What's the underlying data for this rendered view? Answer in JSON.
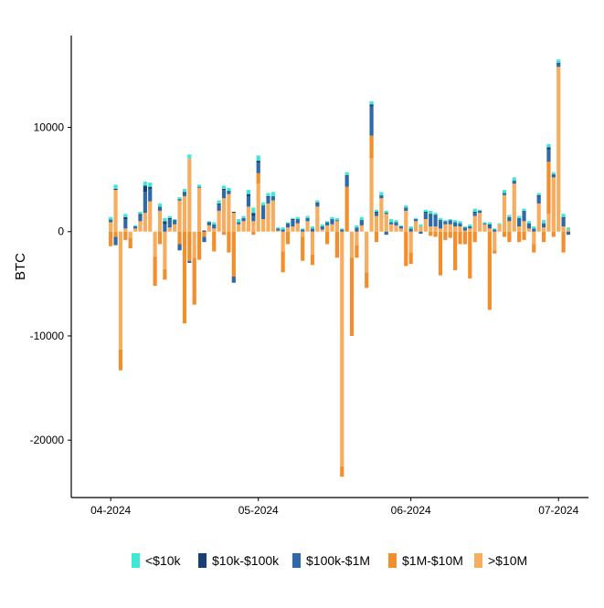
{
  "chart_data": {
    "type": "bar",
    "stacked": true,
    "title": "",
    "xlabel": "",
    "ylabel": "BTC",
    "ylim": [
      -25500,
      18800
    ],
    "xlim": [
      "2024-03-29",
      "2024-07-03"
    ],
    "grid": false,
    "legend_position": "bottom",
    "y_ticks": [
      {
        "value": 10000,
        "label": "10000"
      },
      {
        "value": 0,
        "label": "0"
      },
      {
        "value": -10000,
        "label": "-10000"
      },
      {
        "value": -20000,
        "label": "-20000"
      }
    ],
    "x_ticks": [
      {
        "date": "2024-04-01",
        "label": "04-2024"
      },
      {
        "date": "2024-05-01",
        "label": "05-2024"
      },
      {
        "date": "2024-06-01",
        "label": "06-2024"
      },
      {
        "date": "2024-07-01",
        "label": "07-2024"
      }
    ],
    "series": [
      {
        "name": "<$10k",
        "color": "#3fe8d2"
      },
      {
        "name": "$10k-$100k",
        "color": "#173f73"
      },
      {
        "name": "$100k-$1M",
        "color": "#2f6aa8"
      },
      {
        "name": "$1M-$10M",
        "color": "#f28e2b"
      },
      {
        "name": ">$10M",
        "color": "#f6ad5f"
      }
    ],
    "data": [
      {
        "date": "2024-04-01",
        "values": [
          250,
          50,
          200,
          -1400,
          900
        ]
      },
      {
        "date": "2024-04-02",
        "values": [
          400,
          100,
          -800,
          -500,
          4000
        ]
      },
      {
        "date": "2024-04-03",
        "values": [
          0,
          0,
          0,
          -2000,
          -11300
        ]
      },
      {
        "date": "2024-04-04",
        "values": [
          300,
          200,
          900,
          -800,
          300
        ]
      },
      {
        "date": "2024-04-05",
        "values": [
          0,
          0,
          0,
          -1000,
          -600
        ]
      },
      {
        "date": "2024-04-06",
        "values": [
          100,
          0,
          200,
          0,
          300
        ]
      },
      {
        "date": "2024-04-07",
        "values": [
          200,
          100,
          600,
          0,
          1000
        ]
      },
      {
        "date": "2024-04-08",
        "values": [
          400,
          600,
          2000,
          0,
          1800
        ]
      },
      {
        "date": "2024-04-09",
        "values": [
          400,
          200,
          1200,
          0,
          2900
        ]
      },
      {
        "date": "2024-04-10",
        "values": [
          0,
          0,
          0,
          -2800,
          -2400
        ]
      },
      {
        "date": "2024-04-11",
        "values": [
          300,
          0,
          400,
          -1200,
          2000
        ]
      },
      {
        "date": "2024-04-12",
        "values": [
          300,
          300,
          700,
          -1000,
          -3600
        ]
      },
      {
        "date": "2024-04-13",
        "values": [
          200,
          100,
          800,
          0,
          400
        ]
      },
      {
        "date": "2024-04-14",
        "values": [
          100,
          100,
          300,
          0,
          700
        ]
      },
      {
        "date": "2024-04-15",
        "values": [
          200,
          100,
          -600,
          -1200,
          3000
        ]
      },
      {
        "date": "2024-04-16",
        "values": [
          300,
          100,
          300,
          -8800,
          3400
        ]
      },
      {
        "date": "2024-04-17",
        "values": [
          400,
          0,
          -200,
          -2800,
          7000
        ]
      },
      {
        "date": "2024-04-18",
        "values": [
          0,
          0,
          0,
          -4500,
          -2500
        ]
      },
      {
        "date": "2024-04-19",
        "values": [
          200,
          0,
          100,
          -2700,
          4200
        ]
      },
      {
        "date": "2024-04-20",
        "values": [
          0,
          100,
          -500,
          -500,
          0
        ]
      },
      {
        "date": "2024-04-21",
        "values": [
          100,
          100,
          200,
          0,
          600
        ]
      },
      {
        "date": "2024-04-22",
        "values": [
          200,
          0,
          400,
          -1900,
          300
        ]
      },
      {
        "date": "2024-04-23",
        "values": [
          300,
          100,
          600,
          0,
          2000
        ]
      },
      {
        "date": "2024-04-24",
        "values": [
          300,
          100,
          800,
          -300,
          3200
        ]
      },
      {
        "date": "2024-04-25",
        "values": [
          300,
          100,
          200,
          -2000,
          3600
        ]
      },
      {
        "date": "2024-04-26",
        "values": [
          0,
          100,
          -600,
          -4300,
          1800
        ]
      },
      {
        "date": "2024-04-27",
        "values": [
          300,
          0,
          200,
          0,
          700
        ]
      },
      {
        "date": "2024-04-28",
        "values": [
          200,
          0,
          300,
          0,
          1000
        ]
      },
      {
        "date": "2024-04-29",
        "values": [
          400,
          200,
          1000,
          0,
          2400
        ]
      },
      {
        "date": "2024-04-30",
        "values": [
          500,
          300,
          500,
          -300,
          1000
        ]
      },
      {
        "date": "2024-05-01",
        "values": [
          500,
          200,
          1000,
          1000,
          4600
        ]
      },
      {
        "date": "2024-05-02",
        "values": [
          300,
          100,
          1200,
          0,
          1200
        ]
      },
      {
        "date": "2024-05-03",
        "values": [
          300,
          100,
          600,
          0,
          2700
        ]
      },
      {
        "date": "2024-05-04",
        "values": [
          400,
          0,
          400,
          0,
          3000
        ]
      },
      {
        "date": "2024-05-05",
        "values": [
          100,
          0,
          200,
          0,
          100
        ]
      },
      {
        "date": "2024-05-06",
        "values": [
          200,
          0,
          200,
          -2000,
          -1900
        ]
      },
      {
        "date": "2024-05-07",
        "values": [
          100,
          0,
          400,
          -1200,
          400
        ]
      },
      {
        "date": "2024-05-08",
        "values": [
          100,
          100,
          600,
          0,
          500
        ]
      },
      {
        "date": "2024-05-09",
        "values": [
          200,
          0,
          400,
          0,
          800
        ]
      },
      {
        "date": "2024-05-10",
        "values": [
          100,
          0,
          200,
          -2300,
          -500
        ]
      },
      {
        "date": "2024-05-11",
        "values": [
          200,
          0,
          300,
          0,
          1000
        ]
      },
      {
        "date": "2024-05-12",
        "values": [
          200,
          0,
          300,
          -1000,
          -2200
        ]
      },
      {
        "date": "2024-05-13",
        "values": [
          200,
          100,
          300,
          0,
          2400
        ]
      },
      {
        "date": "2024-05-14",
        "values": [
          200,
          0,
          300,
          0,
          200
        ]
      },
      {
        "date": "2024-05-15",
        "values": [
          100,
          0,
          300,
          -1200,
          600
        ]
      },
      {
        "date": "2024-05-16",
        "values": [
          200,
          0,
          500,
          0,
          700
        ]
      },
      {
        "date": "2024-05-17",
        "values": [
          200,
          0,
          100,
          -2500,
          1000
        ]
      },
      {
        "date": "2024-05-18",
        "values": [
          100,
          0,
          200,
          -1000,
          -22500
        ]
      },
      {
        "date": "2024-05-19",
        "values": [
          300,
          100,
          1000,
          4300,
          0
        ]
      },
      {
        "date": "2024-05-20",
        "values": [
          0,
          0,
          0,
          -7500,
          -2500
        ]
      },
      {
        "date": "2024-05-21",
        "values": [
          200,
          0,
          400,
          -1200,
          -1300
        ]
      },
      {
        "date": "2024-05-22",
        "values": [
          300,
          100,
          400,
          0,
          600
        ]
      },
      {
        "date": "2024-05-23",
        "values": [
          0,
          0,
          0,
          -1500,
          -3900
        ]
      },
      {
        "date": "2024-05-24",
        "values": [
          300,
          200,
          2800,
          2200,
          7000
        ]
      },
      {
        "date": "2024-05-25",
        "values": [
          200,
          100,
          300,
          -1000,
          1500
        ]
      },
      {
        "date": "2024-05-26",
        "values": [
          300,
          0,
          300,
          0,
          3200
        ]
      },
      {
        "date": "2024-05-27",
        "values": [
          200,
          100,
          -300,
          0,
          1700
        ]
      },
      {
        "date": "2024-05-28",
        "values": [
          300,
          0,
          200,
          0,
          700
        ]
      },
      {
        "date": "2024-05-29",
        "values": [
          200,
          0,
          300,
          0,
          600
        ]
      },
      {
        "date": "2024-05-30",
        "values": [
          100,
          0,
          200,
          0,
          300
        ]
      },
      {
        "date": "2024-05-31",
        "values": [
          200,
          0,
          300,
          -3300,
          2000
        ]
      },
      {
        "date": "2024-06-01",
        "values": [
          200,
          0,
          300,
          -1100,
          -2000
        ]
      },
      {
        "date": "2024-06-02",
        "values": [
          100,
          0,
          200,
          0,
          1000
        ]
      },
      {
        "date": "2024-06-03",
        "values": [
          200,
          0,
          -200,
          0,
          500
        ]
      },
      {
        "date": "2024-06-04",
        "values": [
          200,
          100,
          600,
          0,
          1200
        ]
      },
      {
        "date": "2024-06-05",
        "values": [
          300,
          100,
          1100,
          -400,
          500
        ]
      },
      {
        "date": "2024-06-06",
        "values": [
          200,
          100,
          1000,
          -500,
          500
        ]
      },
      {
        "date": "2024-06-07",
        "values": [
          200,
          100,
          700,
          -4200,
          300
        ]
      },
      {
        "date": "2024-06-08",
        "values": [
          100,
          0,
          300,
          -800,
          700
        ]
      },
      {
        "date": "2024-06-09",
        "values": [
          100,
          0,
          400,
          -600,
          700
        ]
      },
      {
        "date": "2024-06-10",
        "values": [
          200,
          0,
          400,
          -3700,
          500
        ]
      },
      {
        "date": "2024-06-11",
        "values": [
          200,
          0,
          300,
          -1200,
          500
        ]
      },
      {
        "date": "2024-06-12",
        "values": [
          100,
          0,
          300,
          -1200,
          100
        ]
      },
      {
        "date": "2024-06-13",
        "values": [
          200,
          0,
          200,
          -4500,
          300
        ]
      },
      {
        "date": "2024-06-14",
        "values": [
          300,
          100,
          300,
          -1000,
          1500
        ]
      },
      {
        "date": "2024-06-15",
        "values": [
          100,
          0,
          200,
          0,
          1800
        ]
      },
      {
        "date": "2024-06-16",
        "values": [
          100,
          0,
          100,
          0,
          700
        ]
      },
      {
        "date": "2024-06-17",
        "values": [
          200,
          100,
          300,
          -7500,
          300
        ]
      },
      {
        "date": "2024-06-18",
        "values": [
          100,
          0,
          200,
          -300,
          -1800
        ]
      },
      {
        "date": "2024-06-19",
        "values": [
          100,
          0,
          0,
          0,
          700
        ]
      },
      {
        "date": "2024-06-20",
        "values": [
          300,
          0,
          200,
          -500,
          3500
        ]
      },
      {
        "date": "2024-06-21",
        "values": [
          200,
          0,
          400,
          -1000,
          1000
        ]
      },
      {
        "date": "2024-06-22",
        "values": [
          300,
          0,
          300,
          0,
          4600
        ]
      },
      {
        "date": "2024-06-23",
        "values": [
          200,
          0,
          800,
          -1000,
          500
        ]
      },
      {
        "date": "2024-06-24",
        "values": [
          200,
          0,
          1000,
          -800,
          1000
        ]
      },
      {
        "date": "2024-06-25",
        "values": [
          200,
          0,
          500,
          0,
          300
        ]
      },
      {
        "date": "2024-06-26",
        "values": [
          200,
          0,
          300,
          -800,
          -1200
        ]
      },
      {
        "date": "2024-06-27",
        "values": [
          200,
          100,
          700,
          0,
          2700
        ]
      },
      {
        "date": "2024-06-28",
        "values": [
          300,
          0,
          400,
          -1000,
          400
        ]
      },
      {
        "date": "2024-06-29",
        "values": [
          300,
          200,
          1200,
          5000,
          1700
        ]
      },
      {
        "date": "2024-06-30",
        "values": [
          200,
          0,
          300,
          -500,
          5200
        ]
      },
      {
        "date": "2024-07-01",
        "values": [
          300,
          100,
          300,
          0,
          15800
        ]
      },
      {
        "date": "2024-07-02",
        "values": [
          300,
          100,
          800,
          -2000,
          500
        ]
      },
      {
        "date": "2024-07-03",
        "values": [
          200,
          0,
          -300,
          0,
          200
        ]
      }
    ]
  }
}
